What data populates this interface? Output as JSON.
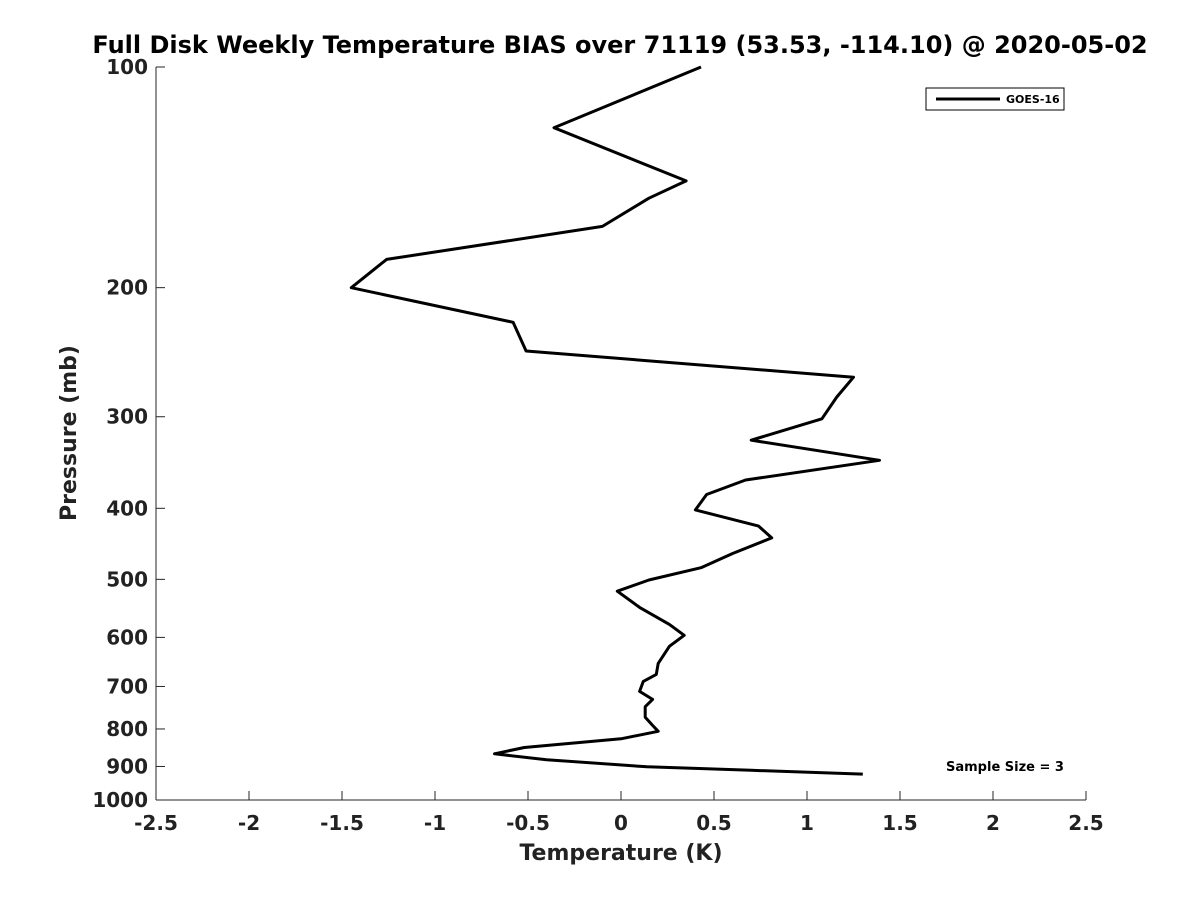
{
  "chart_data": {
    "type": "line",
    "title": "Full Disk Weekly Temperature BIAS over 71119 (53.53, -114.10) @ 2020-05-02",
    "xlabel": "Temperature (K)",
    "ylabel": "Pressure (mb)",
    "xlim": [
      -2.5,
      2.5
    ],
    "ylim": [
      100,
      1000
    ],
    "y_scale": "log",
    "y_reversed": true,
    "x_ticks": [
      "-2.5",
      "-2",
      "-1.5",
      "-1",
      "-0.5",
      "0",
      "0.5",
      "1",
      "1.5",
      "2",
      "2.5"
    ],
    "y_ticks": [
      "100",
      "200",
      "300",
      "400",
      "500",
      "600",
      "700",
      "800",
      "900",
      "1000"
    ],
    "legend": {
      "placement": "top-right",
      "entries": [
        "GOES-16"
      ]
    },
    "annotation": "Sample Size = 3",
    "grid": false,
    "series": [
      {
        "name": "GOES-16",
        "color": "#000000",
        "points": [
          {
            "x": 0.43,
            "y": 100
          },
          {
            "x": -0.36,
            "y": 121
          },
          {
            "x": 0.35,
            "y": 143
          },
          {
            "x": 0.15,
            "y": 151
          },
          {
            "x": -0.1,
            "y": 165
          },
          {
            "x": -1.26,
            "y": 183
          },
          {
            "x": -1.45,
            "y": 200
          },
          {
            "x": -0.58,
            "y": 223
          },
          {
            "x": -0.51,
            "y": 244
          },
          {
            "x": 1.25,
            "y": 265
          },
          {
            "x": 1.16,
            "y": 282
          },
          {
            "x": 1.08,
            "y": 302
          },
          {
            "x": 0.7,
            "y": 323
          },
          {
            "x": 1.39,
            "y": 344
          },
          {
            "x": 0.67,
            "y": 366
          },
          {
            "x": 0.46,
            "y": 383
          },
          {
            "x": 0.4,
            "y": 402
          },
          {
            "x": 0.74,
            "y": 423
          },
          {
            "x": 0.81,
            "y": 439
          },
          {
            "x": 0.6,
            "y": 461
          },
          {
            "x": 0.43,
            "y": 482
          },
          {
            "x": 0.15,
            "y": 501
          },
          {
            "x": -0.02,
            "y": 519
          },
          {
            "x": 0.1,
            "y": 546
          },
          {
            "x": 0.26,
            "y": 576
          },
          {
            "x": 0.34,
            "y": 596
          },
          {
            "x": 0.26,
            "y": 617
          },
          {
            "x": 0.2,
            "y": 651
          },
          {
            "x": 0.19,
            "y": 674
          },
          {
            "x": 0.12,
            "y": 689
          },
          {
            "x": 0.1,
            "y": 711
          },
          {
            "x": 0.17,
            "y": 729
          },
          {
            "x": 0.13,
            "y": 746
          },
          {
            "x": 0.13,
            "y": 771
          },
          {
            "x": 0.17,
            "y": 791
          },
          {
            "x": 0.2,
            "y": 806
          },
          {
            "x": 0.0,
            "y": 825
          },
          {
            "x": -0.52,
            "y": 848
          },
          {
            "x": -0.68,
            "y": 865
          },
          {
            "x": -0.4,
            "y": 881
          },
          {
            "x": 0.14,
            "y": 901
          },
          {
            "x": 0.7,
            "y": 911
          },
          {
            "x": 1.3,
            "y": 922
          }
        ]
      }
    ]
  }
}
